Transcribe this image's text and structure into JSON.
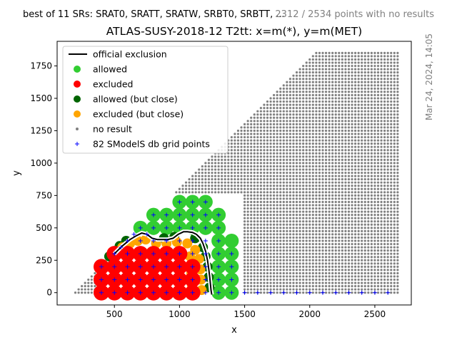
{
  "header": {
    "left_note": "best of 11 SRs: SRAT0, SRATT, SRATW, SRBT0, SRBTT, ...",
    "right_note": "2312 / 2534 points with no results",
    "side_note": "Mar 24, 2024, 14:05"
  },
  "colors": {
    "allowed": "#32cd32",
    "excluded": "#ff0000",
    "allowed_close": "#006400",
    "excluded_close": "#ffa500",
    "no_result": "#808080",
    "grid_point": "#0000ff",
    "exclusion_line": "#000000"
  },
  "chart_data": {
    "type": "scatter",
    "title": "ATLAS-SUSY-2018-12 T2tt: x=m(*), y=m(MET)",
    "xlabel": "x",
    "ylabel": "y",
    "xlim": [
      60,
      2780
    ],
    "ylim": [
      -95,
      1940
    ],
    "x_ticks": [
      500,
      1000,
      1500,
      2000,
      2500
    ],
    "y_ticks": [
      0,
      250,
      500,
      750,
      1000,
      1250,
      1500,
      1750
    ],
    "x_tick_labels": [
      "500",
      "1000",
      "1500",
      "2000",
      "2500"
    ],
    "y_tick_labels": [
      "0",
      "250",
      "500",
      "750",
      "1000",
      "1250",
      "1500",
      "1750"
    ],
    "grid": false,
    "legend_position": "top-left",
    "legend": [
      {
        "key": "official_exclusion",
        "label": "official exclusion",
        "marker": "line"
      },
      {
        "key": "allowed",
        "label": "allowed",
        "marker": "dot"
      },
      {
        "key": "excluded",
        "label": "excluded",
        "marker": "dot"
      },
      {
        "key": "allowed_close",
        "label": "allowed (but close)",
        "marker": "dot"
      },
      {
        "key": "excluded_close",
        "label": "excluded (but close)",
        "marker": "dot"
      },
      {
        "key": "no_result",
        "label": "no result",
        "marker": "small-dot"
      },
      {
        "key": "grid_points",
        "label": "82 SModelS db grid points",
        "marker": "plus"
      }
    ],
    "no_result_region": {
      "x_range": [
        200,
        2680
      ],
      "y_range": [
        0,
        1850
      ],
      "diagonal": "y <= x - 200",
      "spacing": {
        "x": 25,
        "y": 25
      }
    },
    "official_exclusion": {
      "x": [
        500,
        560,
        620,
        670,
        710,
        750,
        790,
        830,
        870,
        910,
        950,
        990,
        1030,
        1060,
        1100,
        1130,
        1160,
        1180,
        1200,
        1215,
        1225,
        1232,
        1238,
        1242,
        1245,
        1248
      ],
      "y": [
        300,
        360,
        410,
        440,
        460,
        450,
        420,
        410,
        410,
        410,
        420,
        450,
        470,
        470,
        465,
        450,
        420,
        380,
        320,
        250,
        180,
        120,
        60,
        20,
        0,
        -15
      ]
    },
    "excluded_points": [
      {
        "x": 400,
        "y": 200
      },
      {
        "x": 400,
        "y": 100
      },
      {
        "x": 400,
        "y": 0
      },
      {
        "x": 500,
        "y": 300
      },
      {
        "x": 500,
        "y": 200
      },
      {
        "x": 500,
        "y": 100
      },
      {
        "x": 500,
        "y": 0
      },
      {
        "x": 600,
        "y": 300
      },
      {
        "x": 600,
        "y": 200
      },
      {
        "x": 600,
        "y": 100
      },
      {
        "x": 600,
        "y": 0
      },
      {
        "x": 700,
        "y": 300
      },
      {
        "x": 700,
        "y": 200
      },
      {
        "x": 700,
        "y": 100
      },
      {
        "x": 700,
        "y": 0
      },
      {
        "x": 800,
        "y": 300
      },
      {
        "x": 800,
        "y": 200
      },
      {
        "x": 800,
        "y": 100
      },
      {
        "x": 800,
        "y": 0
      },
      {
        "x": 900,
        "y": 300
      },
      {
        "x": 900,
        "y": 200
      },
      {
        "x": 900,
        "y": 100
      },
      {
        "x": 900,
        "y": 0
      },
      {
        "x": 1000,
        "y": 300
      },
      {
        "x": 1000,
        "y": 200
      },
      {
        "x": 1000,
        "y": 100
      },
      {
        "x": 1000,
        "y": 0
      },
      {
        "x": 1100,
        "y": 200
      },
      {
        "x": 1100,
        "y": 100
      },
      {
        "x": 1100,
        "y": 0
      }
    ],
    "excluded_close_points": [
      {
        "x": 560,
        "y": 350
      },
      {
        "x": 620,
        "y": 380
      },
      {
        "x": 680,
        "y": 400
      },
      {
        "x": 740,
        "y": 410
      },
      {
        "x": 820,
        "y": 380
      },
      {
        "x": 900,
        "y": 380
      },
      {
        "x": 980,
        "y": 390
      },
      {
        "x": 1060,
        "y": 380
      },
      {
        "x": 1120,
        "y": 330
      },
      {
        "x": 1150,
        "y": 260
      },
      {
        "x": 1160,
        "y": 180
      },
      {
        "x": 1165,
        "y": 100
      },
      {
        "x": 1170,
        "y": 20
      },
      {
        "x": 1080,
        "y": 280
      },
      {
        "x": 1090,
        "y": 150
      },
      {
        "x": 1095,
        "y": 60
      }
    ],
    "allowed_close_points": [
      {
        "x": 460,
        "y": 280
      },
      {
        "x": 540,
        "y": 360
      },
      {
        "x": 590,
        "y": 400
      },
      {
        "x": 1120,
        "y": 420
      },
      {
        "x": 1180,
        "y": 350
      },
      {
        "x": 1200,
        "y": 280
      },
      {
        "x": 1215,
        "y": 200
      },
      {
        "x": 1225,
        "y": 120
      },
      {
        "x": 1230,
        "y": 40
      },
      {
        "x": 880,
        "y": 420
      },
      {
        "x": 960,
        "y": 430
      }
    ],
    "allowed_points": [
      {
        "x": 700,
        "y": 500
      },
      {
        "x": 800,
        "y": 600
      },
      {
        "x": 800,
        "y": 500
      },
      {
        "x": 900,
        "y": 600
      },
      {
        "x": 900,
        "y": 500
      },
      {
        "x": 1000,
        "y": 700
      },
      {
        "x": 1000,
        "y": 600
      },
      {
        "x": 1000,
        "y": 500
      },
      {
        "x": 1100,
        "y": 700
      },
      {
        "x": 1100,
        "y": 600
      },
      {
        "x": 1100,
        "y": 500
      },
      {
        "x": 1200,
        "y": 700
      },
      {
        "x": 1200,
        "y": 600
      },
      {
        "x": 1200,
        "y": 500
      },
      {
        "x": 1300,
        "y": 600
      },
      {
        "x": 1300,
        "y": 500
      },
      {
        "x": 1300,
        "y": 400
      },
      {
        "x": 1300,
        "y": 300
      },
      {
        "x": 1300,
        "y": 200
      },
      {
        "x": 1300,
        "y": 100
      },
      {
        "x": 1300,
        "y": 0
      },
      {
        "x": 1400,
        "y": 400
      },
      {
        "x": 1400,
        "y": 300
      },
      {
        "x": 1400,
        "y": 200
      },
      {
        "x": 1400,
        "y": 100
      },
      {
        "x": 1400,
        "y": 0
      }
    ],
    "grid_points": [
      {
        "x": 400,
        "y": 0
      },
      {
        "x": 400,
        "y": 100
      },
      {
        "x": 400,
        "y": 200
      },
      {
        "x": 500,
        "y": 0
      },
      {
        "x": 500,
        "y": 100
      },
      {
        "x": 500,
        "y": 200
      },
      {
        "x": 500,
        "y": 300
      },
      {
        "x": 600,
        "y": 0
      },
      {
        "x": 600,
        "y": 100
      },
      {
        "x": 600,
        "y": 200
      },
      {
        "x": 600,
        "y": 300
      },
      {
        "x": 600,
        "y": 400
      },
      {
        "x": 700,
        "y": 0
      },
      {
        "x": 700,
        "y": 100
      },
      {
        "x": 700,
        "y": 200
      },
      {
        "x": 700,
        "y": 300
      },
      {
        "x": 700,
        "y": 400
      },
      {
        "x": 700,
        "y": 500
      },
      {
        "x": 800,
        "y": 0
      },
      {
        "x": 800,
        "y": 100
      },
      {
        "x": 800,
        "y": 200
      },
      {
        "x": 800,
        "y": 300
      },
      {
        "x": 800,
        "y": 400
      },
      {
        "x": 800,
        "y": 500
      },
      {
        "x": 800,
        "y": 600
      },
      {
        "x": 900,
        "y": 0
      },
      {
        "x": 900,
        "y": 100
      },
      {
        "x": 900,
        "y": 200
      },
      {
        "x": 900,
        "y": 300
      },
      {
        "x": 900,
        "y": 400
      },
      {
        "x": 900,
        "y": 500
      },
      {
        "x": 900,
        "y": 600
      },
      {
        "x": 1000,
        "y": 0
      },
      {
        "x": 1000,
        "y": 100
      },
      {
        "x": 1000,
        "y": 200
      },
      {
        "x": 1000,
        "y": 300
      },
      {
        "x": 1000,
        "y": 400
      },
      {
        "x": 1000,
        "y": 500
      },
      {
        "x": 1000,
        "y": 600
      },
      {
        "x": 1000,
        "y": 700
      },
      {
        "x": 1100,
        "y": 0
      },
      {
        "x": 1100,
        "y": 100
      },
      {
        "x": 1100,
        "y": 200
      },
      {
        "x": 1100,
        "y": 300
      },
      {
        "x": 1100,
        "y": 400
      },
      {
        "x": 1100,
        "y": 500
      },
      {
        "x": 1100,
        "y": 600
      },
      {
        "x": 1100,
        "y": 700
      },
      {
        "x": 1200,
        "y": 0
      },
      {
        "x": 1200,
        "y": 100
      },
      {
        "x": 1200,
        "y": 200
      },
      {
        "x": 1200,
        "y": 300
      },
      {
        "x": 1200,
        "y": 400
      },
      {
        "x": 1200,
        "y": 500
      },
      {
        "x": 1200,
        "y": 600
      },
      {
        "x": 1200,
        "y": 700
      },
      {
        "x": 1300,
        "y": 0
      },
      {
        "x": 1300,
        "y": 100
      },
      {
        "x": 1300,
        "y": 200
      },
      {
        "x": 1300,
        "y": 300
      },
      {
        "x": 1300,
        "y": 400
      },
      {
        "x": 1300,
        "y": 500
      },
      {
        "x": 1300,
        "y": 600
      },
      {
        "x": 1400,
        "y": 0
      },
      {
        "x": 1400,
        "y": 100
      },
      {
        "x": 1400,
        "y": 200
      },
      {
        "x": 1400,
        "y": 300
      },
      {
        "x": 1500,
        "y": 0
      },
      {
        "x": 1600,
        "y": 0
      },
      {
        "x": 1700,
        "y": 0
      },
      {
        "x": 1800,
        "y": 0
      },
      {
        "x": 1900,
        "y": 0
      },
      {
        "x": 2000,
        "y": 0
      },
      {
        "x": 2100,
        "y": 0
      },
      {
        "x": 2200,
        "y": 0
      },
      {
        "x": 2300,
        "y": 0
      },
      {
        "x": 2400,
        "y": 0
      },
      {
        "x": 2500,
        "y": 0
      },
      {
        "x": 2600,
        "y": 0
      },
      {
        "x": 550,
        "y": 350
      },
      {
        "x": 650,
        "y": 450
      },
      {
        "x": 750,
        "y": 450
      }
    ]
  }
}
